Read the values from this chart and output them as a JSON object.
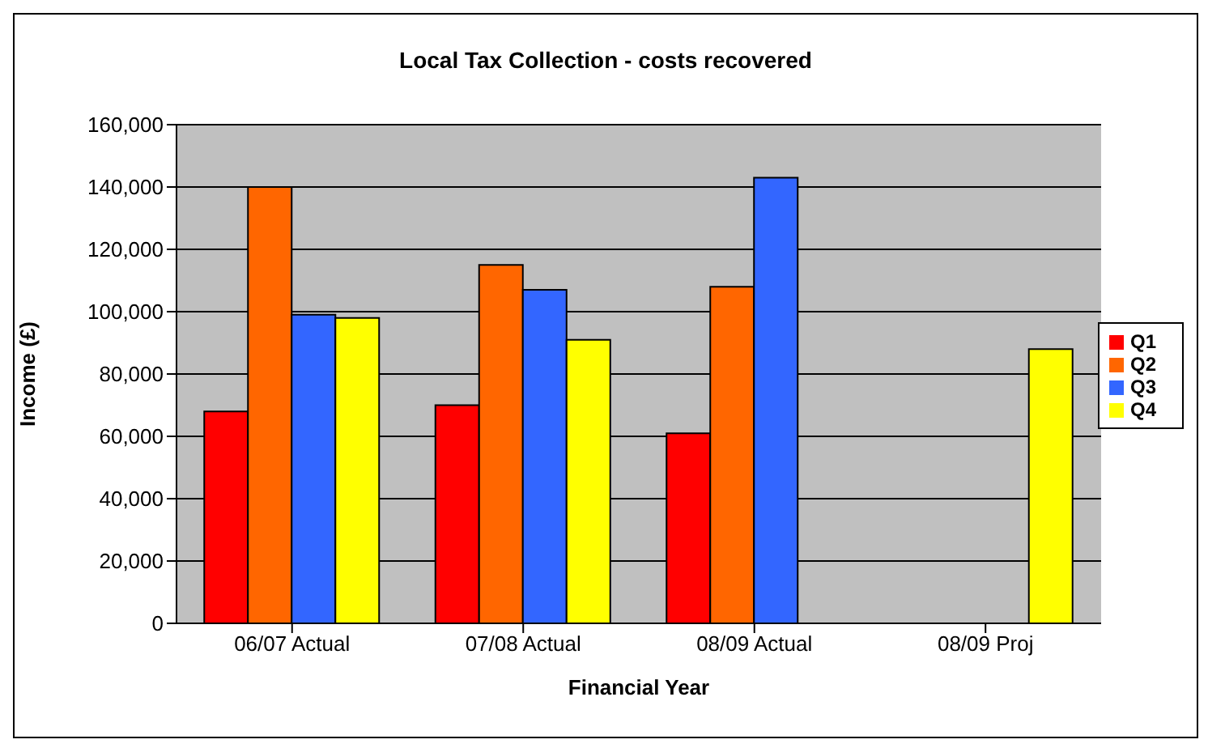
{
  "chart_data": {
    "type": "bar",
    "title": "Local Tax Collection - costs recovered",
    "xlabel": "Financial Year",
    "ylabel": "Income (£)",
    "categories": [
      "06/07 Actual",
      "07/08 Actual",
      "08/09 Actual",
      "08/09 Proj"
    ],
    "series": [
      {
        "name": "Q1",
        "color": "#ff0000",
        "values": [
          68000,
          70000,
          61000,
          null
        ]
      },
      {
        "name": "Q2",
        "color": "#ff6600",
        "values": [
          140000,
          115000,
          108000,
          null
        ]
      },
      {
        "name": "Q3",
        "color": "#3366ff",
        "values": [
          99000,
          107000,
          143000,
          null
        ]
      },
      {
        "name": "Q4",
        "color": "#ffff00",
        "values": [
          98000,
          91000,
          null,
          88000
        ]
      }
    ],
    "ylim": [
      0,
      160000
    ],
    "yticks": [
      0,
      {
        "value": 20000,
        "label": "20,000"
      },
      {
        "value": 40000,
        "label": "40,000"
      },
      {
        "value": 60000,
        "label": "60,000"
      },
      {
        "value": 80000,
        "label": "80,000"
      },
      {
        "value": 100000,
        "label": "100,000"
      },
      {
        "value": 120000,
        "label": "120,000"
      },
      {
        "value": 140000,
        "label": "140,000"
      },
      {
        "value": 160000,
        "label": "160,000"
      }
    ],
    "grid": "y",
    "legend": "right"
  }
}
